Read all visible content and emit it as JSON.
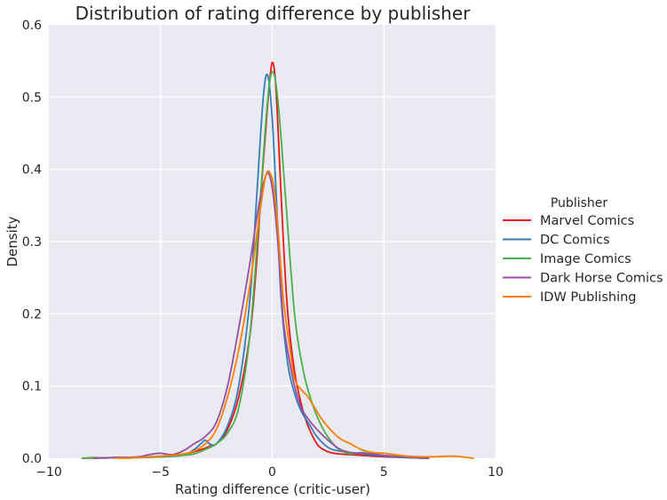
{
  "chart_data": {
    "type": "line",
    "title": "Distribution of rating difference by publisher",
    "xlabel": "Rating difference (critic-user)",
    "ylabel": "Density",
    "xlim": [
      -10,
      10
    ],
    "ylim": [
      0,
      0.6
    ],
    "x_ticks": [
      -10,
      -5,
      0,
      5,
      10
    ],
    "x_tick_labels": [
      "−10",
      "−5",
      "0",
      "5",
      "10"
    ],
    "y_ticks": [
      0,
      0.1,
      0.2,
      0.3,
      0.4,
      0.5,
      0.6
    ],
    "y_tick_labels": [
      "0.0",
      "0.1",
      "0.2",
      "0.3",
      "0.4",
      "0.5",
      "0.6"
    ],
    "grid": true,
    "legend": {
      "title": "Publisher",
      "placement": "outside-right"
    },
    "series": [
      {
        "name": "Marvel Comics",
        "color": "#e41a1c",
        "x": [
          -8.5,
          -7,
          -6,
          -5,
          -4.5,
          -4,
          -3.5,
          -3,
          -2.7,
          -2.5,
          -2,
          -1.5,
          -1,
          -0.7,
          -0.5,
          -0.3,
          -0.15,
          0,
          0.15,
          0.3,
          0.5,
          0.7,
          1,
          1.3,
          1.6,
          2,
          2.3,
          2.6,
          3,
          4,
          5,
          6,
          7
        ],
        "y": [
          0.0,
          0.001,
          0.001,
          0.002,
          0.003,
          0.005,
          0.009,
          0.014,
          0.018,
          0.02,
          0.04,
          0.085,
          0.17,
          0.27,
          0.37,
          0.45,
          0.51,
          0.548,
          0.52,
          0.43,
          0.3,
          0.2,
          0.12,
          0.075,
          0.045,
          0.02,
          0.012,
          0.008,
          0.006,
          0.004,
          0.002,
          0.001,
          0.0
        ]
      },
      {
        "name": "DC Comics",
        "color": "#377eb8",
        "x": [
          -8,
          -7,
          -6,
          -5,
          -4,
          -3.5,
          -3.2,
          -3,
          -2.8,
          -2.5,
          -2,
          -1.5,
          -1,
          -0.7,
          -0.4,
          -0.2,
          0,
          0.2,
          0.4,
          0.7,
          1,
          1.3,
          1.7,
          2,
          2.5,
          3,
          4,
          5,
          6,
          7
        ],
        "y": [
          0.0,
          0.001,
          0.001,
          0.002,
          0.004,
          0.012,
          0.02,
          0.025,
          0.02,
          0.02,
          0.045,
          0.1,
          0.22,
          0.36,
          0.5,
          0.53,
          0.47,
          0.35,
          0.22,
          0.13,
          0.09,
          0.065,
          0.045,
          0.03,
          0.015,
          0.01,
          0.006,
          0.003,
          0.001,
          0.0
        ]
      },
      {
        "name": "Image Comics",
        "color": "#4daf4a",
        "x": [
          -8.5,
          -8,
          -7.5,
          -7,
          -6.5,
          -6,
          -5,
          -4,
          -3.5,
          -3,
          -2.5,
          -2,
          -1.5,
          -1,
          -0.6,
          -0.3,
          -0.1,
          0.1,
          0.3,
          0.6,
          1,
          1.4,
          1.8,
          2.2,
          2.6,
          3,
          3.5,
          4,
          4.5,
          5,
          6,
          7
        ],
        "y": [
          0.0,
          0.001,
          0.0,
          0.001,
          0.0,
          0.001,
          0.002,
          0.004,
          0.006,
          0.012,
          0.02,
          0.035,
          0.07,
          0.17,
          0.33,
          0.46,
          0.525,
          0.53,
          0.48,
          0.36,
          0.2,
          0.12,
          0.075,
          0.045,
          0.025,
          0.012,
          0.006,
          0.008,
          0.006,
          0.004,
          0.002,
          0.001
        ]
      },
      {
        "name": "Dark Horse Comics",
        "color": "#984ea3",
        "x": [
          -8,
          -7,
          -6,
          -5.5,
          -5,
          -4.5,
          -4,
          -3.5,
          -3,
          -2.5,
          -2,
          -1.5,
          -1,
          -0.6,
          -0.3,
          -0.1,
          0.1,
          0.3,
          0.5,
          0.8,
          1,
          1.3,
          1.6,
          2,
          2.5,
          3,
          3.5,
          4,
          4.5,
          5,
          6,
          7
        ],
        "y": [
          0.0,
          0.001,
          0.002,
          0.005,
          0.007,
          0.005,
          0.01,
          0.02,
          0.03,
          0.05,
          0.1,
          0.18,
          0.27,
          0.35,
          0.39,
          0.39,
          0.35,
          0.28,
          0.19,
          0.13,
          0.1,
          0.07,
          0.055,
          0.04,
          0.025,
          0.013,
          0.008,
          0.007,
          0.006,
          0.004,
          0.002,
          0.0
        ]
      },
      {
        "name": "IDW Publishing",
        "color": "#ff7f00",
        "x": [
          -7,
          -6,
          -5,
          -4.5,
          -4,
          -3.5,
          -3,
          -2.5,
          -2,
          -1.5,
          -1,
          -0.6,
          -0.3,
          -0.1,
          0.1,
          0.3,
          0.5,
          0.8,
          1,
          1.3,
          1.6,
          1.9,
          2.2,
          2.6,
          3,
          3.5,
          4,
          4.5,
          5,
          5.5,
          6,
          7,
          8,
          8.5,
          9
        ],
        "y": [
          0.0,
          0.001,
          0.003,
          0.004,
          0.006,
          0.01,
          0.02,
          0.04,
          0.085,
          0.15,
          0.24,
          0.33,
          0.39,
          0.395,
          0.37,
          0.3,
          0.22,
          0.15,
          0.11,
          0.095,
          0.085,
          0.07,
          0.055,
          0.04,
          0.028,
          0.02,
          0.012,
          0.008,
          0.007,
          0.005,
          0.003,
          0.002,
          0.003,
          0.002,
          0.0
        ]
      }
    ]
  }
}
